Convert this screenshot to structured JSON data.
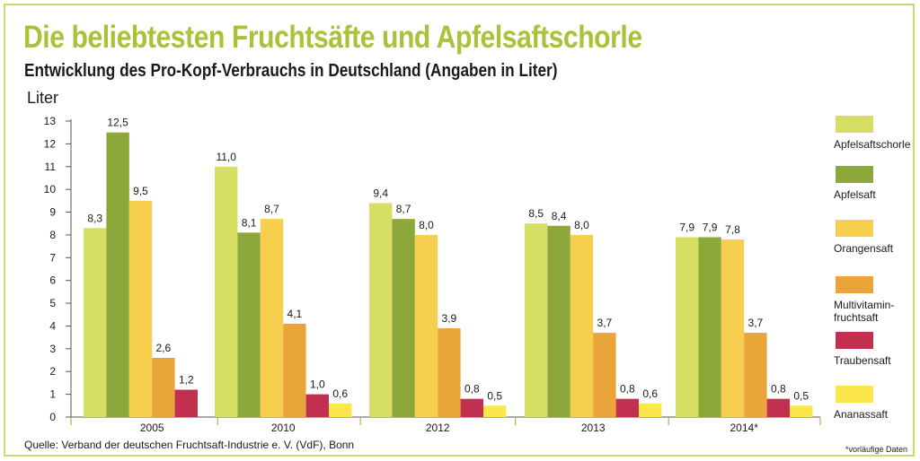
{
  "title": "Die beliebtesten Fruchtsäfte und Apfelsaftschorle",
  "subtitle": "Entwicklung des Pro-Kopf-Verbrauchs in Deutschland (Angaben in Liter)",
  "footer": {
    "source": "Quelle: Verband der deutschen Fruchtsaft-Industrie e. V. (VdF), Bonn",
    "note": "*vorläufige Daten"
  },
  "chart_data": {
    "type": "bar",
    "ylabel": "Liter",
    "xlabel": "",
    "ylim": [
      0,
      13
    ],
    "yticks": [
      0,
      1,
      2,
      3,
      4,
      5,
      6,
      7,
      8,
      9,
      10,
      11,
      12,
      13
    ],
    "grid": false,
    "legend_position": "right",
    "categories": [
      "2005",
      "2010",
      "2012",
      "2013",
      "2014*"
    ],
    "series": [
      {
        "name": "Apfelsaftschorle",
        "color": "#d6de63",
        "values": [
          8.3,
          11.0,
          9.4,
          8.5,
          7.9
        ],
        "labels": [
          "8,3",
          "11,0",
          "9,4",
          "8,5",
          "7,9"
        ]
      },
      {
        "name": "Apfelsaft",
        "color": "#8ca83a",
        "values": [
          12.5,
          8.1,
          8.7,
          8.4,
          7.9
        ],
        "labels": [
          "12,5",
          "8,1",
          "8,7",
          "8,4",
          "7,9"
        ]
      },
      {
        "name": "Orangensaft",
        "color": "#f7cf4e",
        "values": [
          9.5,
          8.7,
          8.0,
          8.0,
          7.8
        ],
        "labels": [
          "9,5",
          "8,7",
          "8,0",
          "8,0",
          "7,8"
        ]
      },
      {
        "name": "Multivitamin-fruchtsaft",
        "legend_lines": [
          "Multivitamin-",
          "fruchtsaft"
        ],
        "color": "#e9a53a",
        "values": [
          2.6,
          4.1,
          3.9,
          3.7,
          3.7
        ],
        "labels": [
          "2,6",
          "4,1",
          "3,9",
          "3,7",
          "3,7"
        ]
      },
      {
        "name": "Traubensaft",
        "color": "#c2304f",
        "values": [
          1.2,
          1.0,
          0.8,
          0.8,
          0.8
        ],
        "labels": [
          "1,2",
          "1,0",
          "0,8",
          "0,8",
          "0,8"
        ]
      },
      {
        "name": "Ananassaft",
        "color": "#fbe74c",
        "values": [
          null,
          0.6,
          0.5,
          0.6,
          0.5
        ],
        "labels": [
          "",
          "0,6",
          "0,5",
          "0,6",
          "0,5"
        ]
      }
    ]
  },
  "colors": {
    "title": "#a9c23a",
    "frame": "#c9db6b",
    "divider": "#9aa43c"
  }
}
